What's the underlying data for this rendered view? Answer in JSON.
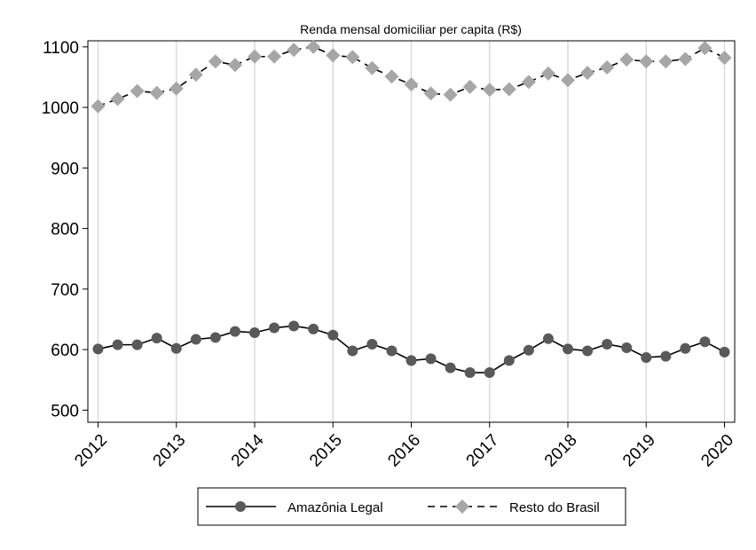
{
  "chart_data": {
    "type": "line",
    "title": "Renda mensal domiciliar per capita (R$)",
    "xlabel": "",
    "ylabel": "",
    "xlim": [
      2012,
      2020
    ],
    "ylim": [
      480,
      1110
    ],
    "xticks": [
      2012,
      2013,
      2014,
      2015,
      2016,
      2017,
      2018,
      2019,
      2020
    ],
    "yticks": [
      500,
      600,
      700,
      800,
      900,
      1000,
      1100
    ],
    "grid": "vertical",
    "legend_position": "bottom",
    "x": [
      2012.0,
      2012.25,
      2012.5,
      2012.75,
      2013.0,
      2013.25,
      2013.5,
      2013.75,
      2014.0,
      2014.25,
      2014.5,
      2014.75,
      2015.0,
      2015.25,
      2015.5,
      2015.75,
      2016.0,
      2016.25,
      2016.5,
      2016.75,
      2017.0,
      2017.25,
      2017.5,
      2017.75,
      2018.0,
      2018.25,
      2018.5,
      2018.75,
      2019.0,
      2019.25,
      2019.5,
      2019.75,
      2020.0
    ],
    "series": [
      {
        "name": "Amazônia Legal",
        "color": "#000000",
        "marker_color": "#595959",
        "marker": "circle",
        "line_style": "solid",
        "values": [
          601,
          608,
          608,
          619,
          602,
          617,
          620,
          630,
          628,
          636,
          639,
          634,
          624,
          598,
          609,
          598,
          582,
          585,
          570,
          562,
          562,
          582,
          599,
          618,
          601,
          598,
          609,
          603,
          587,
          589,
          602,
          613,
          596
        ]
      },
      {
        "name": "Resto do Brasil",
        "color": "#000000",
        "marker_color": "#a6a6a6",
        "marker": "diamond",
        "line_style": "dashed",
        "values": [
          1002,
          1014,
          1027,
          1024,
          1031,
          1054,
          1076,
          1070,
          1084,
          1084,
          1095,
          1100,
          1086,
          1083,
          1065,
          1051,
          1038,
          1023,
          1021,
          1034,
          1029,
          1030,
          1042,
          1056,
          1045,
          1057,
          1066,
          1079,
          1076,
          1076,
          1080,
          1098,
          1082
        ]
      }
    ]
  }
}
